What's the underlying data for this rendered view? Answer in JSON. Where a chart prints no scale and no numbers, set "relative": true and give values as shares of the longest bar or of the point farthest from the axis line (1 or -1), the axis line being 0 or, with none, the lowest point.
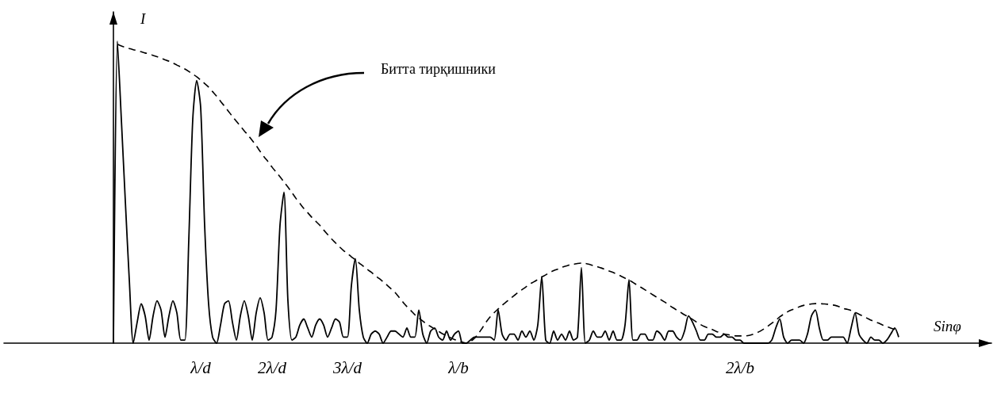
{
  "chart_data": {
    "type": "line",
    "relative": true,
    "xlabel": "Sinφ",
    "ylabel": "I",
    "marker": "none",
    "annotations": [
      "Битта тирқишники"
    ],
    "categories": [
      null,
      null,
      null,
      null,
      null,
      null,
      null,
      null,
      null,
      null,
      null,
      null,
      null,
      null,
      null,
      null,
      null,
      null,
      null,
      null,
      null,
      null,
      "λ/d",
      null,
      null,
      null,
      null,
      null,
      null,
      null,
      null,
      null,
      null,
      null,
      null,
      null,
      null,
      null,
      null,
      null,
      "2λ/d",
      null,
      null,
      null,
      null,
      null,
      null,
      null,
      null,
      null,
      null,
      null,
      null,
      null,
      null,
      null,
      null,
      null,
      null,
      "3λ/d",
      null,
      null,
      null,
      null,
      null,
      null,
      null,
      null,
      null,
      null,
      null,
      null,
      null,
      null,
      null,
      null,
      null,
      null,
      null,
      null,
      null,
      null,
      null,
      null,
      null,
      null,
      null,
      "λ/b",
      null,
      null,
      null,
      null,
      null,
      null,
      null,
      null,
      null,
      null,
      null,
      null,
      null,
      null,
      null,
      null,
      null,
      null,
      null,
      null,
      null,
      null,
      null,
      null,
      null,
      null,
      null,
      null,
      null,
      null,
      null,
      null,
      null,
      null,
      null,
      null,
      null,
      null,
      null,
      null,
      null,
      null,
      null,
      null,
      null,
      null,
      null,
      null,
      null,
      null,
      null,
      null,
      null,
      null,
      null,
      null,
      null,
      null,
      null,
      null,
      null,
      null,
      null,
      null,
      null,
      null,
      null,
      null,
      null,
      null,
      "2λ/b",
      null,
      null,
      null,
      null,
      null,
      null,
      null,
      null,
      null,
      null,
      null,
      null,
      null,
      null,
      null,
      null,
      null,
      null,
      null,
      null,
      null,
      null,
      null,
      null,
      null,
      null,
      null,
      null,
      null,
      null,
      null,
      null,
      null,
      null,
      null,
      null,
      null,
      null,
      null,
      null
    ],
    "series": [
      {
        "color": "#000000",
        "line_style": "solid",
        "values": [
          0,
          1.0,
          0.74,
          0.47,
          0.21,
          0,
          0.07,
          0.13,
          0.09,
          0.01,
          0.09,
          0.14,
          0.11,
          0.02,
          0.09,
          0.14,
          0.1,
          0.01,
          0.01,
          0.34,
          0.74,
          0.87,
          0.78,
          0.39,
          0.13,
          0.02,
          0,
          0.06,
          0.13,
          0.14,
          0.07,
          0.01,
          0.09,
          0.14,
          0.09,
          0.01,
          0.1,
          0.15,
          0.1,
          0.01,
          0.02,
          0.11,
          0.39,
          0.5,
          0.14,
          0.01,
          0.02,
          0.06,
          0.08,
          0.05,
          0.02,
          0.06,
          0.08,
          0.06,
          0.02,
          0.05,
          0.08,
          0.07,
          0.02,
          0.02,
          0.19,
          0.28,
          0.11,
          0.02,
          0,
          0.03,
          0.04,
          0.03,
          0,
          0.02,
          0.04,
          0.04,
          0.03,
          0.02,
          0.05,
          0.02,
          0.02,
          0.11,
          0.03,
          0,
          0.04,
          0.05,
          0.02,
          0.01,
          0.04,
          0.01,
          0.03,
          0.04,
          0,
          0,
          0.01,
          0.02,
          0.02,
          0.02,
          0.02,
          0.02,
          0.01,
          0.11,
          0.03,
          0.01,
          0.03,
          0.03,
          0.01,
          0.04,
          0.02,
          0.04,
          0.01,
          0.06,
          0.22,
          0.01,
          0,
          0.04,
          0.01,
          0.03,
          0.01,
          0.04,
          0.01,
          0.02,
          0.25,
          0,
          0.01,
          0.04,
          0.02,
          0.02,
          0.04,
          0.01,
          0.04,
          0.01,
          0.01,
          0.06,
          0.21,
          0.01,
          0.01,
          0.03,
          0.03,
          0.01,
          0.01,
          0.04,
          0.03,
          0.01,
          0.04,
          0.04,
          0.02,
          0.01,
          0.04,
          0.09,
          0.07,
          0.04,
          0.01,
          0.01,
          0.03,
          0.03,
          0.02,
          0.02,
          0.03,
          0.02,
          0.02,
          0.01,
          0.01,
          0,
          0,
          0,
          0,
          0,
          0,
          0,
          0.01,
          0.05,
          0.08,
          0.02,
          0,
          0.01,
          0.01,
          0.01,
          0,
          0.03,
          0.09,
          0.11,
          0.05,
          0.01,
          0.01,
          0.02,
          0.02,
          0.02,
          0.02,
          0,
          0.05,
          0.1,
          0.03,
          0.01,
          0,
          0.02,
          0.01,
          0.01,
          0,
          0.01,
          0.03,
          0.05,
          0.02
        ]
      },
      {
        "color": "#000000",
        "line_style": "dashed",
        "values": [
          null,
          0.99,
          0.984,
          0.98,
          0.976,
          0.972,
          0.969,
          0.965,
          0.961,
          0.958,
          0.953,
          0.949,
          0.944,
          0.938,
          0.934,
          0.928,
          0.921,
          0.915,
          0.908,
          0.9,
          0.891,
          0.882,
          0.871,
          0.86,
          0.848,
          0.833,
          0.818,
          0.801,
          0.785,
          0.768,
          0.751,
          0.735,
          0.719,
          0.703,
          0.688,
          0.671,
          0.654,
          0.635,
          0.617,
          0.601,
          0.583,
          0.567,
          0.551,
          0.534,
          0.517,
          0.499,
          0.48,
          0.463,
          0.446,
          0.432,
          0.417,
          0.404,
          0.391,
          0.375,
          0.36,
          0.345,
          0.332,
          0.319,
          0.307,
          0.297,
          0.286,
          0.276,
          0.265,
          0.255,
          0.244,
          0.235,
          0.224,
          0.214,
          0.203,
          0.192,
          0.18,
          0.168,
          0.152,
          0.136,
          0.121,
          0.108,
          0.094,
          0.084,
          0.073,
          0.063,
          0.055,
          0.047,
          0.039,
          0.031,
          0.025,
          0.018,
          0.012,
          0.007,
          0.003,
          0,
          0.005,
          0.016,
          0.031,
          0.05,
          0.07,
          0.087,
          0.101,
          0.113,
          0.125,
          0.136,
          0.147,
          0.157,
          0.168,
          0.177,
          0.186,
          0.196,
          0.203,
          0.211,
          0.219,
          0.226,
          0.234,
          0.24,
          0.245,
          0.251,
          0.255,
          0.259,
          0.261,
          0.264,
          0.265,
          0.264,
          0.261,
          0.257,
          0.253,
          0.249,
          0.244,
          0.239,
          0.234,
          0.228,
          0.222,
          0.215,
          0.209,
          0.201,
          0.193,
          0.185,
          0.177,
          0.169,
          0.16,
          0.152,
          0.144,
          0.136,
          0.127,
          0.118,
          0.11,
          0.102,
          0.094,
          0.087,
          0.079,
          0.07,
          0.062,
          0.055,
          0.05,
          0.045,
          0.039,
          0.034,
          0.03,
          0.028,
          0.025,
          0.024,
          0.024,
          0.024,
          0.025,
          0.028,
          0.033,
          0.039,
          0.047,
          0.056,
          0.066,
          0.076,
          0.087,
          0.096,
          0.104,
          0.11,
          0.115,
          0.121,
          0.125,
          0.127,
          0.13,
          0.131,
          0.131,
          0.13,
          0.129,
          0.127,
          0.125,
          0.121,
          0.115,
          0.112,
          0.108,
          0.102,
          0.096,
          0.089,
          0.083,
          0.076,
          0.071,
          0.066,
          0.06,
          0.055,
          0.05,
          0.045,
          0.039
        ]
      }
    ]
  }
}
